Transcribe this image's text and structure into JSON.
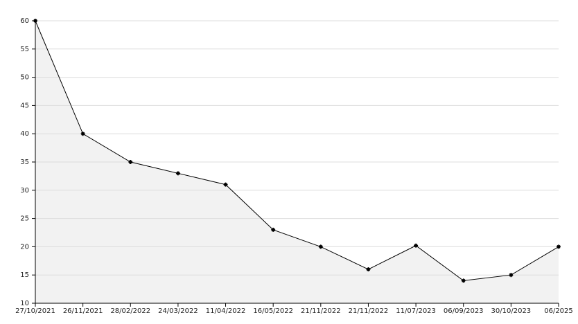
{
  "chart_data": {
    "type": "line",
    "categories": [
      "27/10/2021",
      "26/11/2021",
      "28/02/2022",
      "24/03/2022",
      "11/04/2022",
      "16/05/2022",
      "21/11/2022",
      "21/11/2022",
      "11/07/2023",
      "06/09/2023",
      "30/10/2023",
      "06/2025"
    ],
    "values": [
      60,
      40,
      35,
      33,
      31,
      23,
      20,
      16,
      20.2,
      14,
      15,
      20
    ],
    "color": "#000000",
    "fill": "#f2f2f2",
    "ylim": [
      10,
      60
    ],
    "yticks": [
      10,
      15,
      20,
      25,
      30,
      35,
      40,
      45,
      50,
      55,
      60
    ],
    "grid": true
  }
}
